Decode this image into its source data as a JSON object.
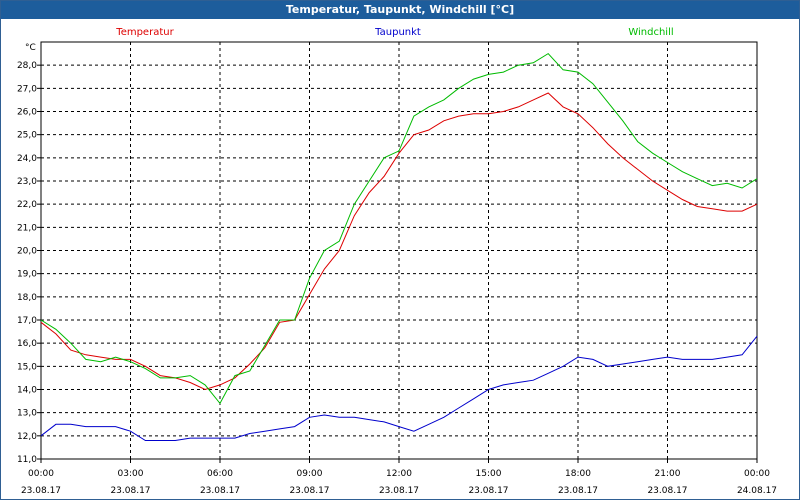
{
  "window": {
    "title": "Temperatur, Taupunkt, Windchill [°C]"
  },
  "chart_data": {
    "type": "line",
    "title": "Temperatur, Taupunkt, Windchill [°C]",
    "ylabel": "°C",
    "ylim": [
      11.0,
      29.0
    ],
    "xlim": [
      0,
      24
    ],
    "yticks": [
      "11,0",
      "12,0",
      "13,0",
      "14,0",
      "15,0",
      "16,0",
      "17,0",
      "18,0",
      "19,0",
      "20,0",
      "21,0",
      "22,0",
      "23,0",
      "24,0",
      "25,0",
      "26,0",
      "27,0",
      "28,0"
    ],
    "xticks": [
      {
        "time": "00:00",
        "date": "23.08.17"
      },
      {
        "time": "03:00",
        "date": "23.08.17"
      },
      {
        "time": "06:00",
        "date": "23.08.17"
      },
      {
        "time": "09:00",
        "date": "23.08.17"
      },
      {
        "time": "12:00",
        "date": "23.08.17"
      },
      {
        "time": "15:00",
        "date": "23.08.17"
      },
      {
        "time": "18:00",
        "date": "23.08.17"
      },
      {
        "time": "21:00",
        "date": "23.08.17"
      },
      {
        "time": "00:00",
        "date": "24.08.17"
      }
    ],
    "grid": true,
    "legend": "top",
    "x": [
      0,
      0.5,
      1,
      1.5,
      2,
      2.5,
      3,
      3.5,
      4,
      4.5,
      5,
      5.5,
      6,
      6.5,
      7,
      7.5,
      8,
      8.5,
      9,
      9.5,
      10,
      10.5,
      11,
      11.5,
      12,
      12.5,
      13,
      13.5,
      14,
      14.5,
      15,
      15.5,
      16,
      16.5,
      17,
      17.5,
      18,
      18.5,
      19,
      19.5,
      20,
      20.5,
      21,
      21.5,
      22,
      22.5,
      23,
      23.5,
      24
    ],
    "series": [
      {
        "name": "Temperatur",
        "color": "#dd0000",
        "values": [
          16.9,
          16.4,
          15.7,
          15.5,
          15.4,
          15.3,
          15.3,
          15.0,
          14.6,
          14.5,
          14.3,
          14.0,
          14.2,
          14.5,
          15.1,
          15.8,
          16.9,
          17.0,
          18.1,
          19.2,
          20.0,
          21.5,
          22.5,
          23.2,
          24.2,
          25.0,
          25.2,
          25.6,
          25.8,
          25.9,
          25.9,
          26.0,
          26.2,
          26.5,
          26.8,
          26.2,
          25.9,
          25.3,
          24.6,
          24.0,
          23.5,
          23.0,
          22.6,
          22.2,
          21.9,
          21.8,
          21.7,
          21.7,
          22.0
        ]
      },
      {
        "name": "Taupunkt",
        "color": "#0000cc",
        "values": [
          12.0,
          12.5,
          12.5,
          12.4,
          12.4,
          12.4,
          12.2,
          11.8,
          11.8,
          11.8,
          11.9,
          11.9,
          11.9,
          11.9,
          12.1,
          12.2,
          12.3,
          12.4,
          12.8,
          12.9,
          12.8,
          12.8,
          12.7,
          12.6,
          12.4,
          12.2,
          12.5,
          12.8,
          13.2,
          13.6,
          14.0,
          14.2,
          14.3,
          14.4,
          14.7,
          15.0,
          15.4,
          15.3,
          15.0,
          15.1,
          15.2,
          15.3,
          15.4,
          15.3,
          15.3,
          15.3,
          15.4,
          15.5,
          16.3
        ]
      },
      {
        "name": "Windchill",
        "color": "#00bb00",
        "values": [
          17.0,
          16.6,
          16.0,
          15.3,
          15.2,
          15.4,
          15.2,
          14.9,
          14.5,
          14.5,
          14.6,
          14.2,
          13.4,
          14.6,
          14.8,
          15.9,
          17.0,
          17.0,
          18.8,
          20.0,
          20.4,
          22.0,
          23.0,
          24.0,
          24.3,
          25.8,
          26.2,
          26.5,
          27.0,
          27.4,
          27.6,
          27.7,
          28.0,
          28.1,
          28.5,
          27.8,
          27.7,
          27.2,
          26.4,
          25.6,
          24.7,
          24.2,
          23.8,
          23.4,
          23.1,
          22.8,
          22.9,
          22.7,
          23.1
        ]
      }
    ]
  }
}
